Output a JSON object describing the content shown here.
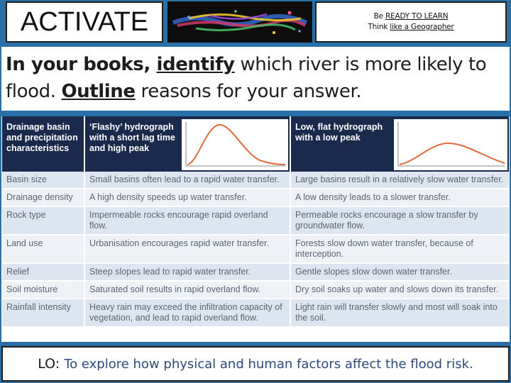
{
  "header": {
    "activate": "ACTIVATE",
    "tag_line1_prefix": "Be ",
    "tag_line1_link": "READY TO LEARN",
    "tag_line2_prefix": "Think ",
    "tag_line2_link": "like a Geographer"
  },
  "instruction": {
    "part1": "In your books, ",
    "part2": "identify",
    "part3": " which river is more likely to flood. ",
    "part4": "Outline",
    "part5": " reasons for your answer."
  },
  "table": {
    "headers": [
      "Drainage basin and precipitation characteristics",
      "‘Flashy’ hydrograph with a short lag time and high peak",
      "Low, flat hydrograph with a low peak"
    ],
    "rows": [
      [
        "Basin size",
        "Small basins often lead to a rapid water transfer.",
        "Large basins result in a relatively slow water transfer."
      ],
      [
        "Drainage density",
        "A high density speeds up water transfer.",
        "A low density leads to a slower transfer."
      ],
      [
        "Rock type",
        "Impermeable rocks encourage rapid overland flow.",
        "Permeable rocks encourage a slow transfer by groundwater flow."
      ],
      [
        "Land use",
        "Urbanisation encourages rapid water transfer.",
        "Forests slow down water transfer, because of interception."
      ],
      [
        "Relief",
        "Steep slopes lead to rapid water transfer.",
        "Gentle slopes slow down water transfer."
      ],
      [
        "Soil moisture",
        "Saturated soil results in rapid overland flow.",
        "Dry soil soaks up water and slows down its transfer."
      ],
      [
        "Rainfall intensity",
        "Heavy rain may exceed the infiltration capacity of vegetation, and lead to rapid overland flow.",
        "Light rain will transfer slowly and most will soak into the soil."
      ]
    ]
  },
  "lo": {
    "key": "LO:",
    "text": "To explore how physical and human factors affect the flood risk."
  },
  "colors": {
    "background": "#2b6fa7",
    "table_header": "#1a2a4d",
    "row_light": "#dde6f0",
    "curve": "#e06a3b",
    "lo_text": "#2d4a7a"
  }
}
